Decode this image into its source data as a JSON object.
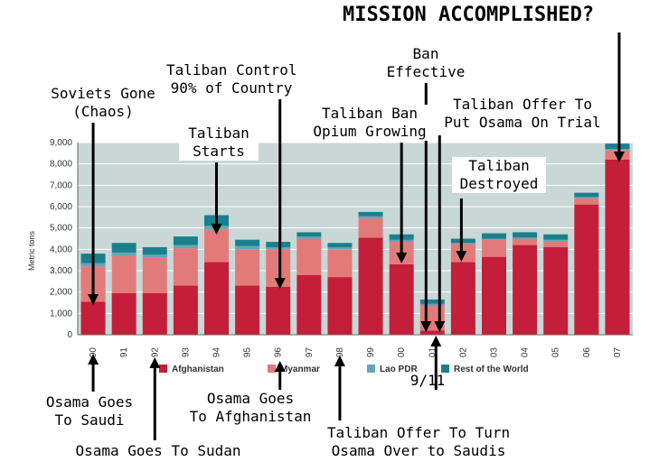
{
  "chart_data": {
    "type": "bar",
    "stacked": true,
    "title": "MISSION ACCOMPLISHED?",
    "ylabel": "Metric tons",
    "ylim": [
      0,
      9000
    ],
    "yticks": [
      "0",
      "1,000",
      "2,000",
      "3,000",
      "4,000",
      "5,000",
      "6,000",
      "7,000",
      "8,000",
      "9,000"
    ],
    "grid": true,
    "legend_position": "bottom",
    "categories": [
      "90",
      "91",
      "92",
      "93",
      "94",
      "95",
      "96",
      "97",
      "98",
      "99",
      "00",
      "01",
      "02",
      "03",
      "04",
      "05",
      "06",
      "07"
    ],
    "series": [
      {
        "name": "Afghanistan",
        "color": "#c41e3a",
        "values": [
          1550,
          1950,
          1950,
          2300,
          3400,
          2300,
          2250,
          2800,
          2700,
          4550,
          3300,
          200,
          3400,
          3650,
          4200,
          4100,
          6100,
          8200
        ]
      },
      {
        "name": "Myanmar",
        "color": "#e27a7a",
        "values": [
          1650,
          1750,
          1650,
          1750,
          1550,
          1700,
          1750,
          1700,
          1300,
          900,
          1050,
          1150,
          850,
          800,
          300,
          300,
          300,
          450
        ]
      },
      {
        "name": "Lao PDR",
        "color": "#5fa8b8",
        "values": [
          150,
          150,
          150,
          150,
          150,
          150,
          100,
          100,
          100,
          100,
          100,
          100,
          50,
          50,
          50,
          50,
          50,
          50
        ]
      },
      {
        "name": "Rest of the World",
        "color": "#1b7f8c",
        "values": [
          450,
          450,
          350,
          400,
          500,
          300,
          250,
          200,
          200,
          200,
          250,
          200,
          200,
          250,
          250,
          250,
          200,
          250
        ]
      }
    ],
    "annotations": [
      {
        "id": "soviets",
        "text": "Soviets Gone\n(Chaos)",
        "category": "90"
      },
      {
        "id": "taliban_control",
        "text": "Taliban Control\n90% of Country",
        "category": "96"
      },
      {
        "id": "taliban_starts",
        "text": "Taliban\nStarts",
        "category": "94"
      },
      {
        "id": "taliban_ban",
        "text": "Taliban Ban\nOpium Growing",
        "category": "00"
      },
      {
        "id": "ban_effective",
        "text": "Ban\nEffective",
        "category": "01"
      },
      {
        "id": "offer_trial",
        "text": "Taliban Offer To\nPut Osama On Trial",
        "category": "01"
      },
      {
        "id": "destroyed",
        "text": "Taliban\nDestroyed",
        "category": "02"
      },
      {
        "id": "mission",
        "text": "MISSION ACCOMPLISHED?",
        "category": "07"
      },
      {
        "id": "saudi",
        "text": "Osama Goes\nTo Saudi",
        "category": "90"
      },
      {
        "id": "sudan",
        "text": "Osama Goes To Sudan",
        "category": "92"
      },
      {
        "id": "afghanistan",
        "text": "Osama Goes\nTo Afghanistan",
        "category": "96"
      },
      {
        "id": "offer_turn",
        "text": "Taliban Offer To Turn\nOsama Over to Saudis",
        "category": "98"
      },
      {
        "id": "nine_eleven",
        "text": "9/11",
        "category": "01"
      }
    ]
  }
}
